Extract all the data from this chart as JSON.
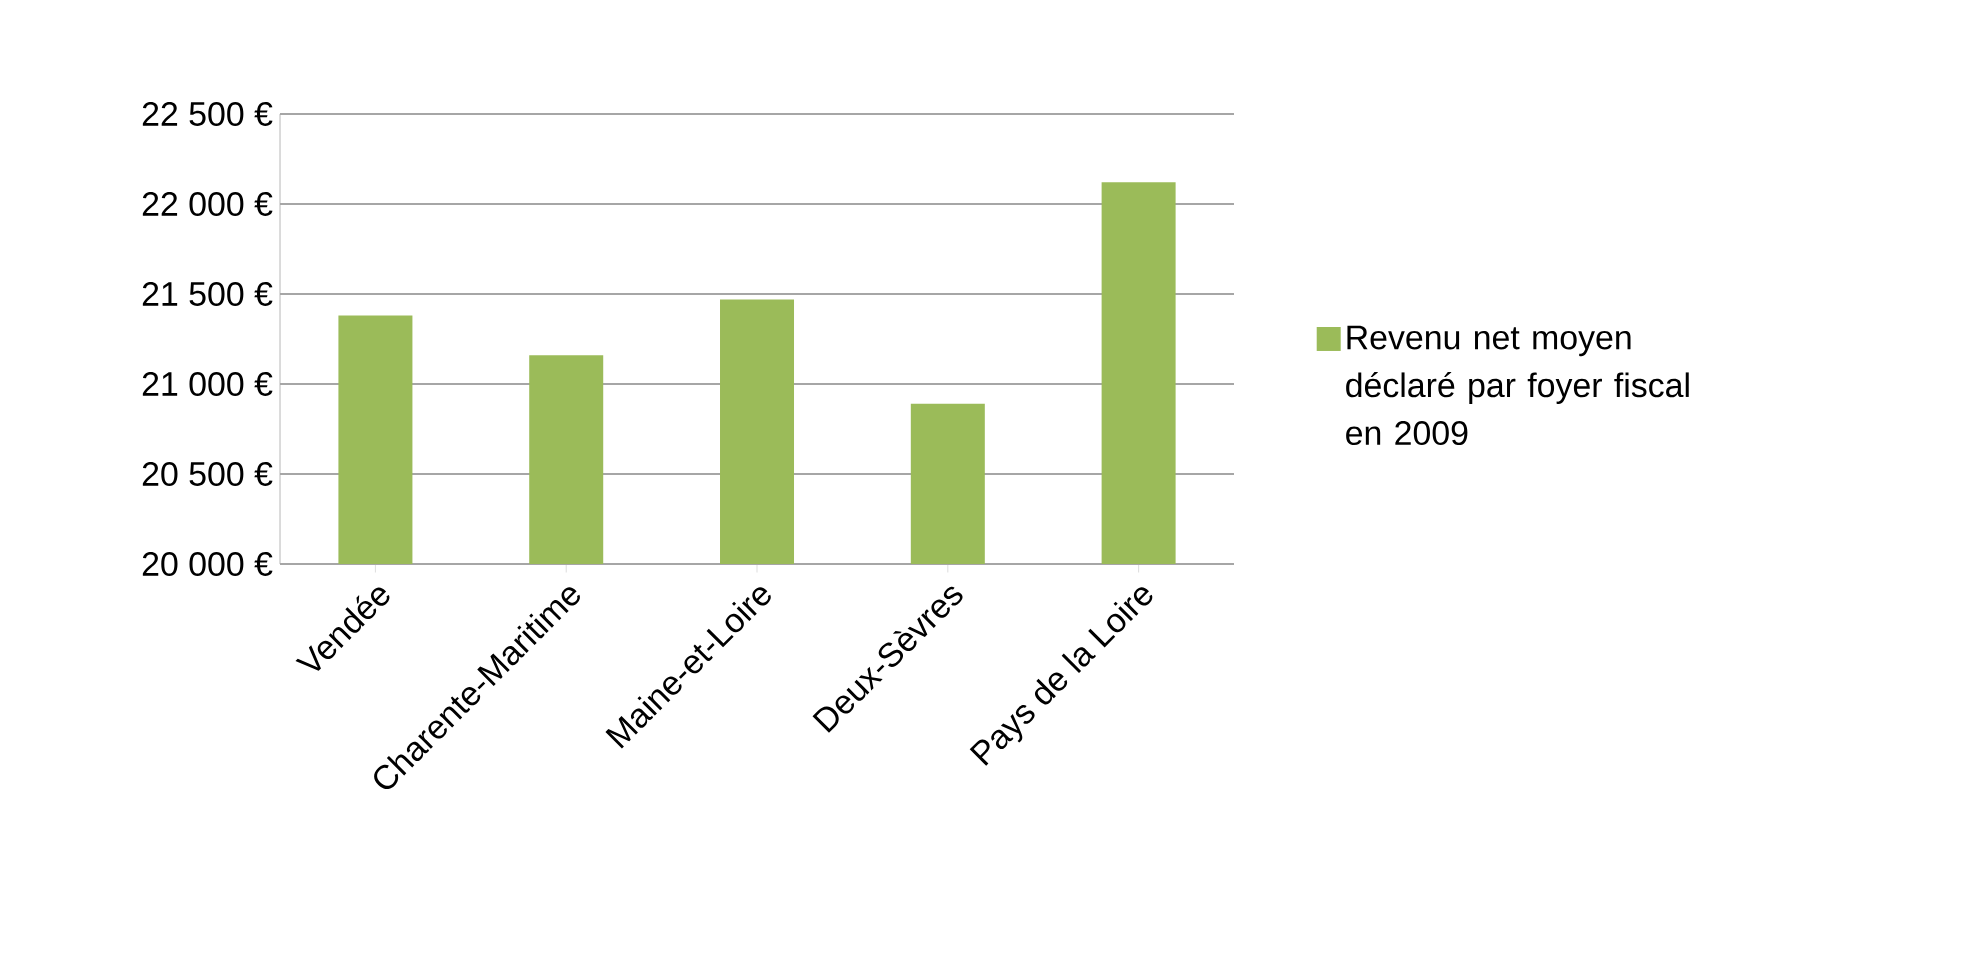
{
  "chart_data": {
    "type": "bar",
    "categories": [
      "Vendée",
      "Charente-Maritime",
      "Maine-et-Loire",
      "Deux-Sèvres",
      "Pays de la Loire"
    ],
    "series": [
      {
        "name": "Revenu net moyen déclaré par foyer fiscal en 2009",
        "color": "#9bbb59",
        "values": [
          21380,
          21160,
          21470,
          20890,
          22120
        ]
      }
    ],
    "ylim": [
      20000,
      22500
    ],
    "yticks": [
      {
        "value": 20000,
        "label": "20 000 €"
      },
      {
        "value": 20500,
        "label": "20 500 €"
      },
      {
        "value": 21000,
        "label": "21 000 €"
      },
      {
        "value": 21500,
        "label": "21 500 €"
      },
      {
        "value": 22000,
        "label": "22 000 €"
      },
      {
        "value": 22500,
        "label": "22 500 €"
      }
    ],
    "grid": "y",
    "legend": "right"
  }
}
